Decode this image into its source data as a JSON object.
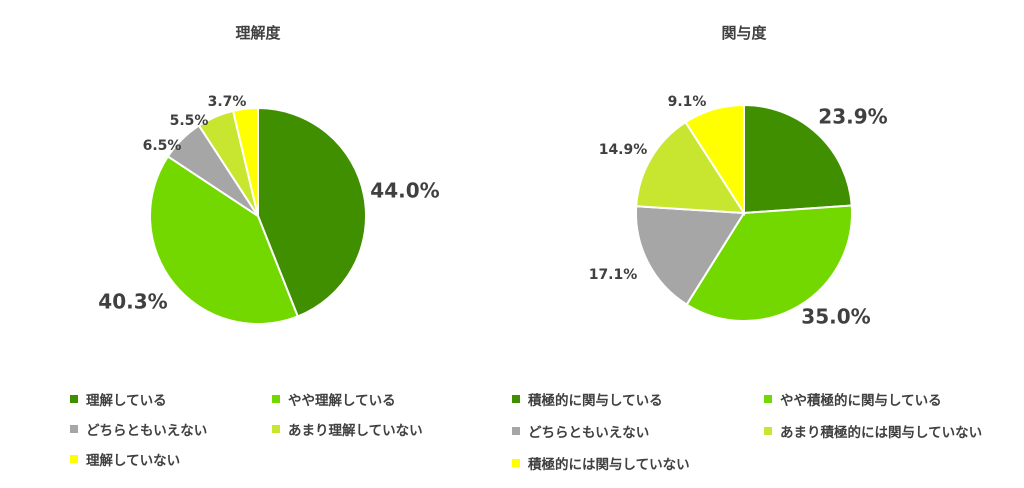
{
  "chart_data": [
    {
      "type": "pie",
      "title": "理解度",
      "colors": [
        "#3F8F00",
        "#72D800",
        "#A6A6A6",
        "#C8E630",
        "#FFFF00"
      ],
      "slices": [
        {
          "label": "理解している",
          "value": 44.0,
          "display": "44.0%"
        },
        {
          "label": "やや理解している",
          "value": 40.3,
          "display": "40.3%"
        },
        {
          "label": "どちらともいえない",
          "value": 6.5,
          "display": "6.5%"
        },
        {
          "label": "あまり理解していない",
          "value": 5.5,
          "display": "5.5%"
        },
        {
          "label": "理解していない",
          "value": 3.7,
          "display": "3.7%"
        }
      ]
    },
    {
      "type": "pie",
      "title": "関与度",
      "colors": [
        "#3F8F00",
        "#72D800",
        "#A6A6A6",
        "#C8E630",
        "#FFFF00"
      ],
      "slices": [
        {
          "label": "積極的に関与している",
          "value": 23.9,
          "display": "23.9%"
        },
        {
          "label": "やや積極的に関与している",
          "value": 35.0,
          "display": "35.0%"
        },
        {
          "label": "どちらともいえない",
          "value": 17.1,
          "display": "17.1%"
        },
        {
          "label": "あまり積極的には関与していない",
          "value": 14.9,
          "display": "14.9%"
        },
        {
          "label": "積極的には関与していない",
          "value": 9.1,
          "display": "9.1%"
        }
      ]
    }
  ]
}
